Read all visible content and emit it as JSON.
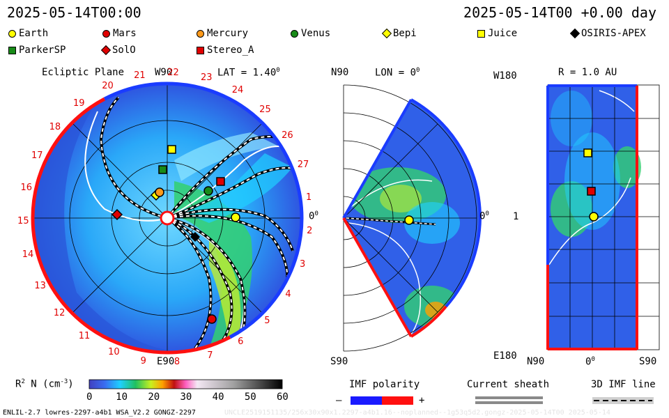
{
  "header": {
    "left_time": "2025-05-14T00:00",
    "right_time": "2025-05-14T00 +0.00 day"
  },
  "legend": [
    {
      "name": "Earth",
      "shape": "circle",
      "color": "#ffff00"
    },
    {
      "name": "Mars",
      "shape": "circle",
      "color": "#e00000"
    },
    {
      "name": "Mercury",
      "shape": "circle",
      "color": "#ff9a1a"
    },
    {
      "name": "Venus",
      "shape": "circle",
      "color": "#188b18"
    },
    {
      "name": "Bepi",
      "shape": "diamond",
      "color": "#ffff00"
    },
    {
      "name": "Juice",
      "shape": "square",
      "color": "#ffff00"
    },
    {
      "name": "OSIRIS-APEX",
      "shape": "diamond",
      "color": "#000000"
    },
    {
      "name": "ParkerSP",
      "shape": "square",
      "color": "#188b18"
    },
    {
      "name": "SolO",
      "shape": "diamond",
      "color": "#e00000"
    },
    {
      "name": "Stereo_A",
      "shape": "square",
      "color": "#e00000"
    }
  ],
  "ecliptic": {
    "title": "Ecliptic Plane",
    "top_label": "W90",
    "lat_label": "LAT = 1.40",
    "lat_sup": "0",
    "right_label": "0",
    "right_sup": "0",
    "bottom_label": "E90",
    "carrington": [
      "1",
      "2",
      "3",
      "4",
      "5",
      "6",
      "7",
      "8",
      "9",
      "10",
      "11",
      "12",
      "13",
      "14",
      "15",
      "16",
      "17",
      "18",
      "19",
      "20",
      "21",
      "22",
      "23",
      "24",
      "25",
      "26",
      "27"
    ]
  },
  "meridional": {
    "top_left": "N90",
    "lon_label": "LON = 0",
    "lon_sup": "0",
    "right_label": "0",
    "right_sup": "0",
    "bottom_left": "S90"
  },
  "radial": {
    "top_left": "W180",
    "r_label": "R = 1.0 AU",
    "left_mid": "1",
    "bottom_left": "E180",
    "bottom_n": "N90",
    "bottom_mid": "0",
    "bottom_mid_sup": "0",
    "bottom_s": "S90"
  },
  "colorbar": {
    "label_main": "R",
    "label_sup": "2",
    "label_rest": " N (cm",
    "label_exp": "-3",
    "label_close": ")",
    "ticks": [
      "0",
      "10",
      "20",
      "30",
      "40",
      "50",
      "60"
    ]
  },
  "imf": {
    "title": "IMF polarity",
    "minus": "–",
    "plus": "+"
  },
  "sheath": {
    "title": "Current sheath"
  },
  "imfline": {
    "title": "3D IMF line"
  },
  "footer": {
    "left": "ENLIL-2.7 lowres-2297-a4b1 WSA_V2.2 GONGZ-2297",
    "right": "UNCLE2519151135/256x30x90x1.2297-a4b1.16--noplanned--1g53q5d2.gongz-2025-05-14T00   2025-05-14"
  }
}
